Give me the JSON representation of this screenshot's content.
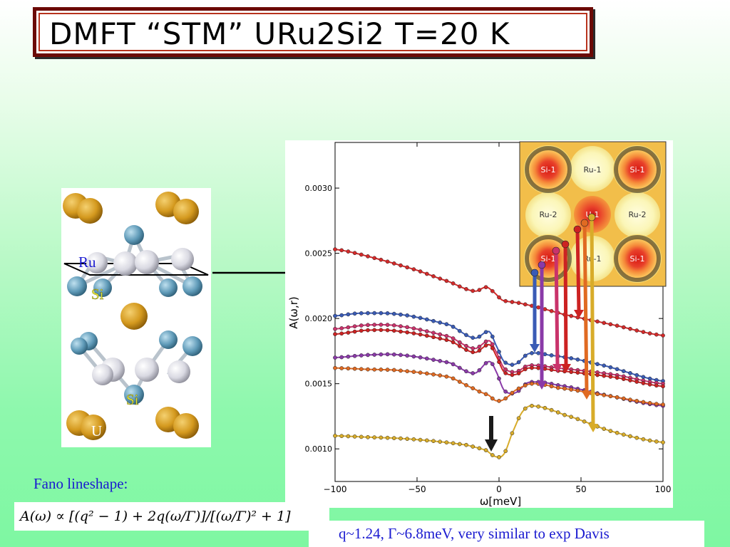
{
  "slide": {
    "title": "DMFT “STM” URu2Si2  T=20 K",
    "fano_label": "Fano lineshape:",
    "formula": "A(ω) ∝ [(q² − 1) + 2q(ω/Γ)]/[(ω/Γ)² + 1]",
    "result": "q~1.24, Γ~6.8meV, very similar to exp  Davis"
  },
  "crystal": {
    "labels": [
      "Ru",
      "Si",
      "Si",
      "U"
    ],
    "colors": {
      "U": "#d4991e",
      "Si": "#5f9ab8",
      "Ru": "#d9d9e2"
    }
  },
  "inset": {
    "labels": [
      "Si-1",
      "Ru-1",
      "Si-1",
      "Ru-2",
      "U-1",
      "Ru-2",
      "Si-1",
      "Ru-1",
      "Si-1"
    ]
  },
  "chart_data": {
    "type": "line",
    "title": "",
    "xlabel": "ω[meV]",
    "ylabel": "A(ω,r)",
    "xlim": [
      -100,
      100
    ],
    "ylim": [
      0.00075,
      0.00335
    ],
    "xticks": [
      "−100",
      "−50",
      "0",
      "50",
      "100"
    ],
    "yticks": [
      "0.0010",
      "0.0015",
      "0.0020",
      "0.0025",
      "0.0030"
    ],
    "grid": false,
    "series": [
      {
        "color": "#d42a2a",
        "points": [
          [
            -100,
            0.00253
          ],
          [
            -75,
            0.00246
          ],
          [
            -50,
            0.00237
          ],
          [
            -30,
            0.00228
          ],
          [
            -15,
            0.00221
          ],
          [
            -8,
            0.00224
          ],
          [
            -4,
            0.00221
          ],
          [
            2,
            0.00214
          ],
          [
            15,
            0.00211
          ],
          [
            40,
            0.00203
          ],
          [
            70,
            0.00195
          ],
          [
            100,
            0.00187
          ]
        ]
      },
      {
        "color": "#3a5bb5",
        "points": [
          [
            -100,
            0.00202
          ],
          [
            -85,
            0.00204
          ],
          [
            -60,
            0.00203
          ],
          [
            -30,
            0.00195
          ],
          [
            -15,
            0.00185
          ],
          [
            -6,
            0.0019
          ],
          [
            -2,
            0.0018
          ],
          [
            3,
            0.00167
          ],
          [
            10,
            0.00165
          ],
          [
            18,
            0.00173
          ],
          [
            30,
            0.00172
          ],
          [
            60,
            0.00165
          ],
          [
            100,
            0.00152
          ]
        ]
      },
      {
        "color": "#c9336b",
        "points": [
          [
            -100,
            0.00192
          ],
          [
            -80,
            0.00195
          ],
          [
            -60,
            0.00194
          ],
          [
            -30,
            0.00186
          ],
          [
            -15,
            0.00177
          ],
          [
            -6,
            0.00183
          ],
          [
            -2,
            0.00175
          ],
          [
            3,
            0.00162
          ],
          [
            10,
            0.00159
          ],
          [
            18,
            0.00164
          ],
          [
            35,
            0.00162
          ],
          [
            70,
            0.00157
          ],
          [
            100,
            0.0015
          ]
        ]
      },
      {
        "color": "#cc2222",
        "points": [
          [
            -100,
            0.00188
          ],
          [
            -80,
            0.00191
          ],
          [
            -60,
            0.0019
          ],
          [
            -30,
            0.00183
          ],
          [
            -15,
            0.00174
          ],
          [
            -6,
            0.0018
          ],
          [
            -2,
            0.00172
          ],
          [
            3,
            0.00159
          ],
          [
            10,
            0.00157
          ],
          [
            18,
            0.00162
          ],
          [
            35,
            0.0016
          ],
          [
            70,
            0.00155
          ],
          [
            100,
            0.00148
          ]
        ]
      },
      {
        "color": "#8a3aa8",
        "points": [
          [
            -100,
            0.0017
          ],
          [
            -80,
            0.00172
          ],
          [
            -60,
            0.00172
          ],
          [
            -30,
            0.00166
          ],
          [
            -15,
            0.00158
          ],
          [
            -6,
            0.00167
          ],
          [
            -2,
            0.0016
          ],
          [
            3,
            0.00145
          ],
          [
            10,
            0.00143
          ],
          [
            18,
            0.00151
          ],
          [
            35,
            0.00149
          ],
          [
            70,
            0.0014
          ],
          [
            100,
            0.00133
          ]
        ]
      },
      {
        "color": "#e06a22",
        "points": [
          [
            -100,
            0.00162
          ],
          [
            -80,
            0.00161
          ],
          [
            -60,
            0.0016
          ],
          [
            -30,
            0.00155
          ],
          [
            -15,
            0.00146
          ],
          [
            -6,
            0.00141
          ],
          [
            -2,
            0.00137
          ],
          [
            3,
            0.00138
          ],
          [
            10,
            0.00145
          ],
          [
            20,
            0.0015
          ],
          [
            35,
            0.00147
          ],
          [
            70,
            0.0014
          ],
          [
            100,
            0.00134
          ]
        ]
      },
      {
        "color": "#d8ac2a",
        "points": [
          [
            -100,
            0.0011
          ],
          [
            -80,
            0.00109
          ],
          [
            -60,
            0.00108
          ],
          [
            -40,
            0.00106
          ],
          [
            -20,
            0.00103
          ],
          [
            -8,
            0.00099
          ],
          [
            -2,
            0.00094
          ],
          [
            3,
            0.00096
          ],
          [
            8,
            0.00112
          ],
          [
            14,
            0.00128
          ],
          [
            20,
            0.00133
          ],
          [
            40,
            0.00126
          ],
          [
            70,
            0.00113
          ],
          [
            100,
            0.00105
          ]
        ]
      }
    ]
  }
}
